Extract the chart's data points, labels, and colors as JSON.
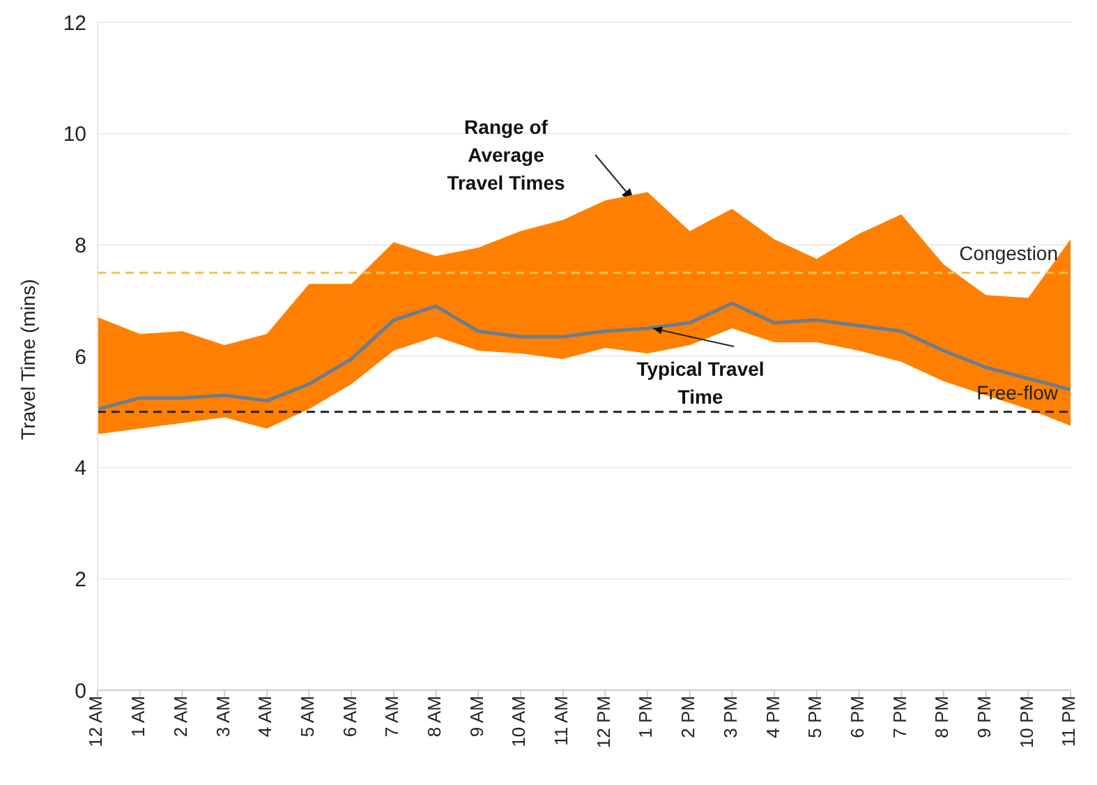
{
  "chart_data": {
    "type": "line",
    "ylabel": "Travel Time (mins)",
    "categories": [
      "12 AM",
      "1 AM",
      "2 AM",
      "3 AM",
      "4 AM",
      "5 AM",
      "6 AM",
      "7 AM",
      "8 AM",
      "9 AM",
      "10 AM",
      "11 AM",
      "12 PM",
      "1 PM",
      "2 PM",
      "3 PM",
      "4 PM",
      "5 PM",
      "6 PM",
      "7 PM",
      "8 PM",
      "9 PM",
      "10 PM",
      "11 PM"
    ],
    "series": [
      {
        "color": "#6b7d8f",
        "values": [
          5.05,
          5.25,
          5.25,
          5.3,
          5.2,
          5.5,
          5.95,
          6.65,
          6.9,
          6.45,
          6.35,
          6.35,
          6.45,
          6.5,
          6.6,
          6.95,
          6.6,
          6.65,
          6.55,
          6.45,
          6.1,
          5.8,
          5.6,
          5.4
        ],
        "lower": [
          4.6,
          4.7,
          4.8,
          4.9,
          4.7,
          5.05,
          5.5,
          6.1,
          6.35,
          6.1,
          6.05,
          5.95,
          6.15,
          6.05,
          6.2,
          6.5,
          6.25,
          6.25,
          6.1,
          5.9,
          5.55,
          5.3,
          5.05,
          4.75
        ],
        "upper": [
          6.7,
          6.4,
          6.45,
          6.2,
          6.4,
          7.3,
          7.3,
          8.05,
          7.8,
          7.95,
          8.25,
          8.45,
          8.8,
          8.95,
          8.25,
          8.65,
          8.1,
          7.75,
          8.2,
          8.55,
          7.65,
          7.1,
          7.05,
          8.1
        ]
      }
    ],
    "ylim": [
      0,
      12
    ],
    "yticks": [
      0,
      2,
      4,
      6,
      8,
      10,
      12
    ],
    "grid": "y",
    "legend": false,
    "marker": "none",
    "line_style": "solid",
    "ref_lines": [
      {
        "axis": "y",
        "value": 7.5,
        "label": "Congestion",
        "color": "#f2c14e",
        "line_style": "dashed"
      },
      {
        "axis": "y",
        "value": 5,
        "label": "Free-flow",
        "color": "#222222",
        "line_style": "dashed"
      }
    ],
    "annotations": [
      "Range of\nAverage\nTravel Times",
      {
        "text": "Typical Travel\nTime",
        "x": "1 PM",
        "y": 6.5
      }
    ]
  }
}
